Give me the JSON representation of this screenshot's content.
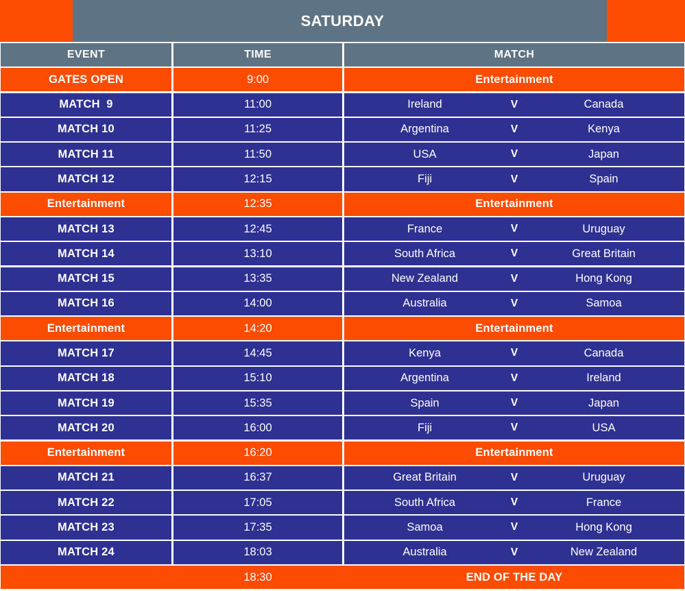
{
  "title": "SATURDAY",
  "columns": [
    "EVENT",
    "TIME",
    "MATCH"
  ],
  "versus": "V",
  "colors": {
    "orange": "#fc4c02",
    "navy": "#2e3192",
    "gray": "#5e7383",
    "text": "#ffffff"
  },
  "rows": [
    {
      "kind": "info",
      "event": "GATES OPEN",
      "time": "9:00",
      "label": "Entertainment"
    },
    {
      "kind": "match",
      "event": "MATCH  9",
      "time": "11:00",
      "home": "Ireland",
      "away": "Canada"
    },
    {
      "kind": "match",
      "event": "MATCH 10",
      "time": "11:25",
      "home": "Argentina",
      "away": "Kenya"
    },
    {
      "kind": "match",
      "event": "MATCH 11",
      "time": "11:50",
      "home": "USA",
      "away": "Japan"
    },
    {
      "kind": "match",
      "event": "MATCH 12",
      "time": "12:15",
      "home": "Fiji",
      "away": "Spain"
    },
    {
      "kind": "info",
      "event": "Entertainment",
      "time": "12:35",
      "label": "Entertainment"
    },
    {
      "kind": "match",
      "event": "MATCH 13",
      "time": "12:45",
      "home": "France",
      "away": "Uruguay"
    },
    {
      "kind": "match",
      "event": "MATCH 14",
      "time": "13:10",
      "home": "South Africa",
      "away": "Great Britain"
    },
    {
      "kind": "match",
      "event": "MATCH 15",
      "time": "13:35",
      "home": "New Zealand",
      "away": "Hong Kong"
    },
    {
      "kind": "match",
      "event": "MATCH 16",
      "time": "14:00",
      "home": "Australia",
      "away": "Samoa"
    },
    {
      "kind": "info",
      "event": "Entertainment",
      "time": "14:20",
      "label": "Entertainment"
    },
    {
      "kind": "match",
      "event": "MATCH 17",
      "time": "14:45",
      "home": "Kenya",
      "away": "Canada"
    },
    {
      "kind": "match",
      "event": "MATCH 18",
      "time": "15:10",
      "home": "Argentina",
      "away": "Ireland"
    },
    {
      "kind": "match",
      "event": "MATCH 19",
      "time": "15:35",
      "home": "Spain",
      "away": "Japan"
    },
    {
      "kind": "match",
      "event": "MATCH 20",
      "time": "16:00",
      "home": "Fiji",
      "away": "USA"
    },
    {
      "kind": "info",
      "event": "Entertainment",
      "time": "16:20",
      "label": "Entertainment"
    },
    {
      "kind": "match",
      "event": "MATCH 21",
      "time": "16:37",
      "home": "Great Britain",
      "away": "Uruguay"
    },
    {
      "kind": "match",
      "event": "MATCH 22",
      "time": "17:05",
      "home": "South Africa",
      "away": "France"
    },
    {
      "kind": "match",
      "event": "MATCH 23",
      "time": "17:35",
      "home": "Samoa",
      "away": "Hong Kong"
    },
    {
      "kind": "match",
      "event": "MATCH 24",
      "time": "18:03",
      "home": "Australia",
      "away": "New Zealand"
    },
    {
      "kind": "end",
      "event": "",
      "time": "18:30",
      "label": "END OF THE DAY"
    }
  ]
}
